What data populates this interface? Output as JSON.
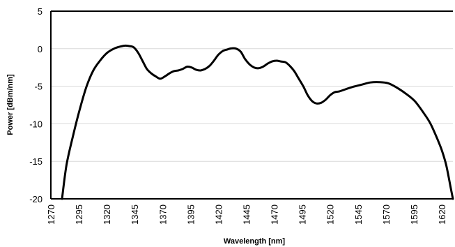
{
  "chart_data": {
    "type": "line",
    "title": "",
    "xlabel": "Wavelength [nm]",
    "ylabel": "Power [dBm/nm]",
    "xlim": [
      1270,
      1630
    ],
    "ylim": [
      -20,
      5
    ],
    "x_ticks": [
      1270,
      1295,
      1320,
      1345,
      1370,
      1395,
      1420,
      1445,
      1470,
      1495,
      1520,
      1545,
      1570,
      1595,
      1620
    ],
    "y_ticks": [
      5,
      0,
      -5,
      -10,
      -15,
      -20
    ],
    "x_tick_labels": [
      "1270",
      "1295",
      "1320",
      "1345",
      "1370",
      "1395",
      "1420",
      "1445",
      "1470",
      "1495",
      "1520",
      "1545",
      "1570",
      "1595",
      "1620"
    ],
    "y_tick_labels": [
      "5",
      "0",
      "-5",
      "-10",
      "-15",
      "-20"
    ],
    "grid": "horizontal",
    "legend": "none",
    "colors": {
      "line": "#000000",
      "grid": "#d9d9d9",
      "axis": "#000000"
    },
    "series": [
      {
        "x": [
          1280,
          1284,
          1290,
          1296,
          1302,
          1308,
          1314,
          1320,
          1325,
          1330,
          1336,
          1340,
          1344,
          1348,
          1352,
          1356,
          1360,
          1364,
          1368,
          1372,
          1376,
          1380,
          1384,
          1388,
          1392,
          1396,
          1400,
          1404,
          1408,
          1412,
          1416,
          1420,
          1424,
          1428,
          1432,
          1436,
          1440,
          1444,
          1448,
          1452,
          1456,
          1460,
          1464,
          1468,
          1472,
          1476,
          1480,
          1484,
          1488,
          1492,
          1496,
          1500,
          1504,
          1508,
          1512,
          1516,
          1520,
          1524,
          1528,
          1532,
          1540,
          1548,
          1556,
          1564,
          1572,
          1580,
          1588,
          1596,
          1604,
          1610,
          1616,
          1620,
          1624,
          1628,
          1630
        ],
        "y": [
          -20,
          -15.5,
          -11.5,
          -8.0,
          -5.0,
          -2.9,
          -1.6,
          -0.6,
          -0.1,
          0.2,
          0.4,
          0.35,
          0.2,
          -0.5,
          -1.6,
          -2.7,
          -3.3,
          -3.7,
          -4.0,
          -3.7,
          -3.3,
          -3.0,
          -2.9,
          -2.7,
          -2.4,
          -2.5,
          -2.8,
          -2.9,
          -2.7,
          -2.3,
          -1.6,
          -0.8,
          -0.3,
          -0.1,
          0.05,
          0.0,
          -0.4,
          -1.4,
          -2.1,
          -2.5,
          -2.6,
          -2.4,
          -2.0,
          -1.7,
          -1.6,
          -1.7,
          -1.8,
          -2.3,
          -3.0,
          -4.0,
          -5.0,
          -6.2,
          -7.0,
          -7.3,
          -7.2,
          -6.8,
          -6.2,
          -5.8,
          -5.7,
          -5.5,
          -5.1,
          -4.8,
          -4.5,
          -4.45,
          -4.6,
          -5.2,
          -6.0,
          -7.0,
          -8.6,
          -10.0,
          -12.0,
          -13.5,
          -15.5,
          -18.5,
          -20
        ]
      }
    ]
  }
}
